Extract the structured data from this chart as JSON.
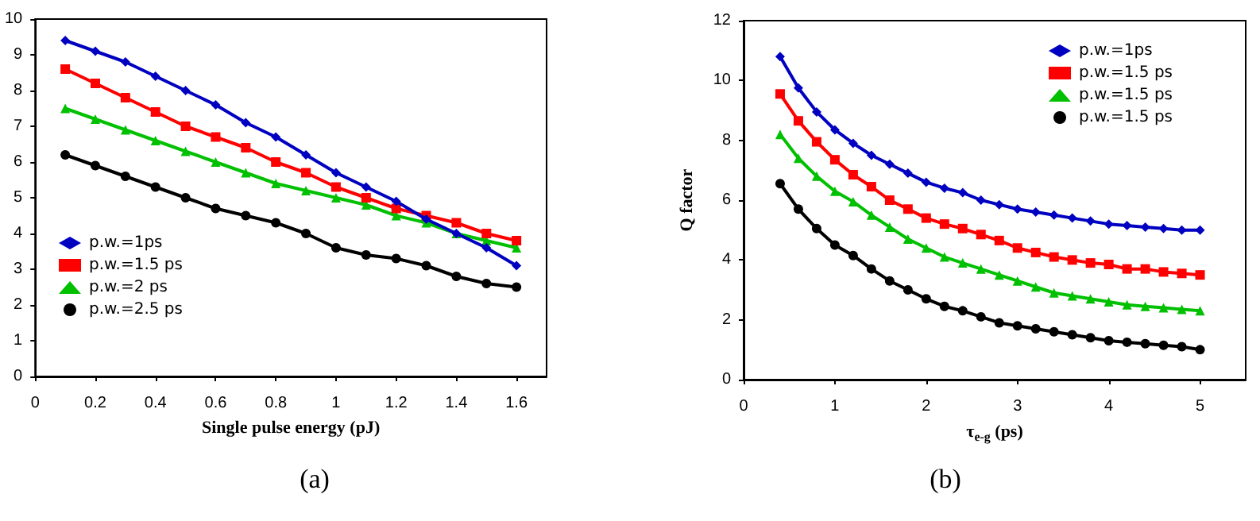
{
  "chart_data": [
    {
      "type": "line",
      "xlabel": "Single pulse energy (pJ)",
      "x": [
        0.1,
        0.2,
        0.3,
        0.4,
        0.5,
        0.6,
        0.7,
        0.8,
        0.9,
        1.0,
        1.1,
        1.2,
        1.3,
        1.4,
        1.5,
        1.6
      ],
      "xlim": [
        0,
        1.7
      ],
      "xticks": [
        0,
        0.2,
        0.4,
        0.6,
        0.8,
        1,
        1.2,
        1.4,
        1.6
      ],
      "ylim": [
        0,
        10
      ],
      "yticks": [
        0,
        1,
        2,
        3,
        4,
        5,
        6,
        7,
        8,
        9,
        10
      ],
      "grid": false,
      "legend": "bottom left",
      "annotations": [
        "(a)"
      ],
      "series": [
        {
          "name": "p.w.=1ps",
          "color": "#0000c0",
          "marker": "diamond",
          "values": [
            9.4,
            9.1,
            8.8,
            8.4,
            8.0,
            7.6,
            7.1,
            6.7,
            6.2,
            5.7,
            5.3,
            4.9,
            4.4,
            4.0,
            3.6,
            3.1
          ]
        },
        {
          "name": "p.w.=1.5 ps",
          "color": "#ff0000",
          "marker": "square",
          "values": [
            8.6,
            8.2,
            7.8,
            7.4,
            7.0,
            6.7,
            6.4,
            6.0,
            5.7,
            5.3,
            5.0,
            4.7,
            4.5,
            4.3,
            4.0,
            3.8
          ]
        },
        {
          "name": "p.w.=2 ps",
          "color": "#00c000",
          "marker": "triangle",
          "values": [
            7.5,
            7.2,
            6.9,
            6.6,
            6.3,
            6.0,
            5.7,
            5.4,
            5.2,
            5.0,
            4.8,
            4.5,
            4.3,
            4.0,
            3.8,
            3.6
          ]
        },
        {
          "name": "p.w.=2.5 ps",
          "color": "#000000",
          "marker": "circle",
          "values": [
            6.2,
            5.9,
            5.6,
            5.3,
            5.0,
            4.7,
            4.5,
            4.3,
            4.0,
            3.6,
            3.4,
            3.3,
            3.1,
            2.8,
            2.6,
            2.5
          ]
        }
      ]
    },
    {
      "type": "line",
      "xlabel": "τ$_{e-g}$ (ps)",
      "ylabel": "Q factor",
      "x": [
        0.4,
        0.6,
        0.8,
        1.0,
        1.2,
        1.4,
        1.6,
        1.8,
        2.0,
        2.2,
        2.4,
        2.6,
        2.8,
        3.0,
        3.2,
        3.4,
        3.6,
        3.8,
        4.0,
        4.2,
        4.4,
        4.6,
        4.8,
        5.0
      ],
      "xlim": [
        0,
        5.5
      ],
      "xticks": [
        0,
        1,
        2,
        3,
        4,
        5
      ],
      "ylim": [
        0,
        12
      ],
      "yticks": [
        0,
        2,
        4,
        6,
        8,
        10,
        12
      ],
      "grid": false,
      "legend": "top right",
      "annotations": [
        "(b)"
      ],
      "series": [
        {
          "name": "p.w.=1ps",
          "color": "#0000c0",
          "marker": "diamond",
          "values": [
            10.8,
            9.75,
            8.95,
            8.35,
            7.9,
            7.5,
            7.2,
            6.9,
            6.6,
            6.4,
            6.25,
            6.0,
            5.85,
            5.7,
            5.6,
            5.5,
            5.4,
            5.3,
            5.2,
            5.15,
            5.1,
            5.05,
            5.0,
            5.0
          ]
        },
        {
          "name": "p.w.=1.5 ps",
          "color": "#ff0000",
          "marker": "square",
          "values": [
            9.55,
            8.65,
            7.95,
            7.35,
            6.85,
            6.45,
            6.0,
            5.7,
            5.4,
            5.2,
            5.05,
            4.85,
            4.65,
            4.4,
            4.25,
            4.1,
            4.0,
            3.9,
            3.85,
            3.7,
            3.7,
            3.6,
            3.55,
            3.5
          ]
        },
        {
          "name": "p.w.=1.5 ps",
          "color": "#00c000",
          "marker": "triangle",
          "values": [
            8.2,
            7.4,
            6.8,
            6.3,
            5.95,
            5.5,
            5.1,
            4.7,
            4.4,
            4.1,
            3.9,
            3.7,
            3.5,
            3.3,
            3.1,
            2.9,
            2.8,
            2.7,
            2.6,
            2.5,
            2.45,
            2.4,
            2.35,
            2.3
          ]
        },
        {
          "name": "p.w.=1.5 ps",
          "color": "#000000",
          "marker": "circle",
          "values": [
            6.55,
            5.7,
            5.05,
            4.5,
            4.15,
            3.7,
            3.3,
            3.0,
            2.7,
            2.45,
            2.3,
            2.1,
            1.9,
            1.8,
            1.7,
            1.6,
            1.5,
            1.4,
            1.3,
            1.25,
            1.2,
            1.15,
            1.1,
            1.0
          ]
        }
      ]
    }
  ]
}
